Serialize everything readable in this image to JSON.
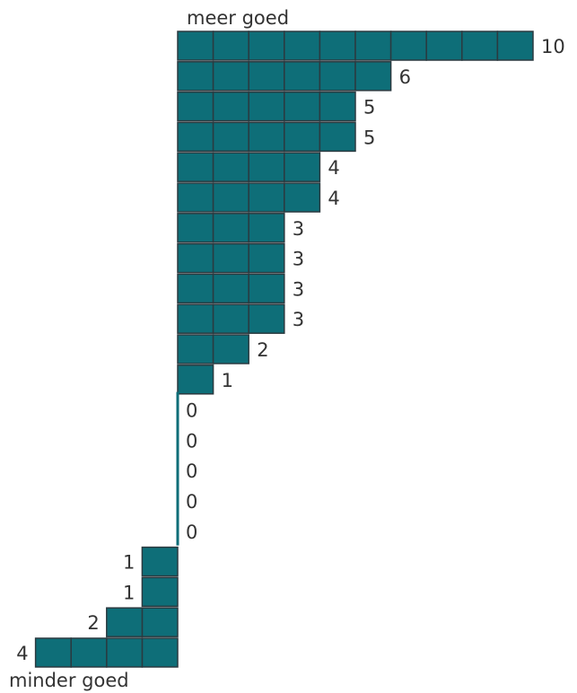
{
  "chart_data": {
    "type": "bar",
    "orientation": "diverging-horizontal",
    "top_label": "meer goed",
    "bottom_label": "minder goed",
    "color": "#0e6e78",
    "border_color": "#2b3a40",
    "positive_values": [
      10,
      6,
      5,
      5,
      4,
      4,
      3,
      3,
      3,
      3,
      2,
      1,
      0,
      0,
      0,
      0,
      0
    ],
    "negative_values": [
      1,
      1,
      2,
      4
    ]
  }
}
